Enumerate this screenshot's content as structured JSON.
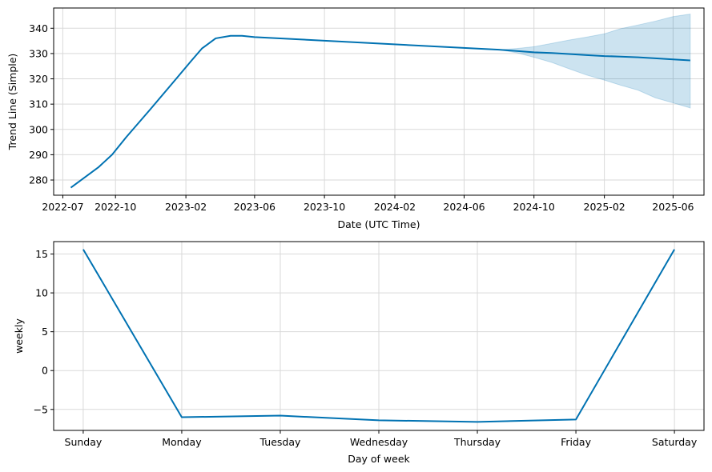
{
  "chart_data": [
    {
      "type": "line",
      "xlabel": "Date (UTC Time)",
      "ylabel": "Trend Line (Simple)",
      "grid": true,
      "x_axis_type": "date",
      "xlim": [
        "2022-06-15",
        "2025-07-25"
      ],
      "ylim": [
        274,
        348
      ],
      "x_ticks": [
        "2022-07",
        "2022-10",
        "2023-02",
        "2023-06",
        "2023-10",
        "2024-02",
        "2024-06",
        "2024-10",
        "2025-02",
        "2025-06"
      ],
      "y_ticks": [
        280,
        290,
        300,
        310,
        320,
        330,
        340
      ],
      "series": [
        {
          "line_color": "#0072b2",
          "band_color": "#0072b2",
          "x": [
            "2022-07-15",
            "2022-09-01",
            "2022-09-25",
            "2022-10-20",
            "2022-12-01",
            "2023-01-15",
            "2023-02-10",
            "2023-03-01",
            "2023-03-25",
            "2023-04-20",
            "2023-05-10",
            "2023-06-01",
            "2024-08-01",
            "2024-09-01",
            "2024-10-01",
            "2024-11-01",
            "2024-12-01",
            "2025-01-01",
            "2025-02-01",
            "2025-03-01",
            "2025-04-01",
            "2025-05-01",
            "2025-06-01",
            "2025-07-01"
          ],
          "y": [
            277,
            285,
            290,
            297,
            308,
            320,
            327,
            332,
            336,
            337,
            337,
            336.5,
            331.5,
            331,
            330.5,
            330.2,
            329.8,
            329.4,
            329,
            328.8,
            328.5,
            328.1,
            327.7,
            327.3
          ],
          "band_lower": [
            277,
            285,
            290,
            297,
            308,
            320,
            327,
            332,
            336,
            337,
            337,
            336.5,
            331.5,
            330.3,
            328.5,
            326.5,
            324,
            321.5,
            319.5,
            317.5,
            315.5,
            312.5,
            310.5,
            308.5
          ],
          "band_upper": [
            277,
            285,
            290,
            297,
            308,
            320,
            327,
            332,
            336,
            337,
            337,
            336.5,
            331.5,
            332,
            332.7,
            334,
            335.3,
            336.5,
            337.8,
            339.8,
            341.3,
            342.8,
            344.6,
            345.6
          ]
        }
      ]
    },
    {
      "type": "line",
      "xlabel": "Day of week",
      "ylabel": "weekly",
      "grid": true,
      "categories": [
        "Sunday",
        "Monday",
        "Tuesday",
        "Wednesday",
        "Thursday",
        "Friday",
        "Saturday"
      ],
      "ylim": [
        -7.7,
        16.6
      ],
      "y_ticks": [
        -5,
        0,
        5,
        10,
        15
      ],
      "y_tick_labels": [
        "−5",
        "0",
        "5",
        "10",
        "15"
      ],
      "series": [
        {
          "line_color": "#0072b2",
          "values": [
            15.6,
            -6.0,
            -5.8,
            -6.4,
            -6.6,
            -6.3,
            15.6
          ]
        }
      ]
    }
  ]
}
